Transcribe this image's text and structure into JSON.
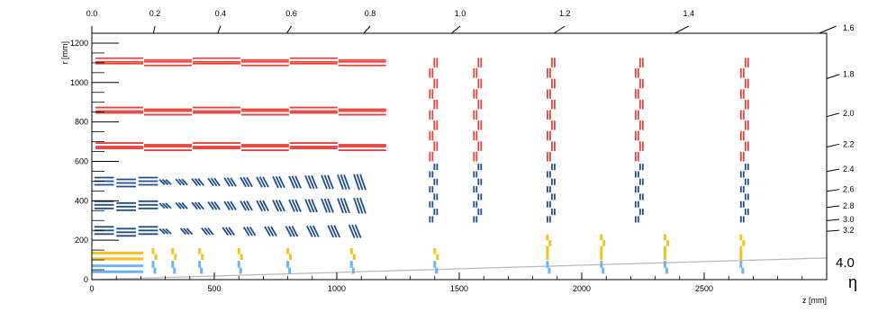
{
  "axes": {
    "x_unit_label": "z [mm]",
    "y_unit_label": "r [mm]",
    "x_ticks": [
      "0",
      "500",
      "1000",
      "1500",
      "2000",
      "2500"
    ],
    "y_ticks": [
      "0",
      "200",
      "400",
      "600",
      "800",
      "1000",
      "1200"
    ],
    "eta_symbol": "η",
    "eta_top_ticks": [
      "0.0",
      "0.2",
      "0.4",
      "0.6",
      "0.8",
      "1.0",
      "1.2",
      "1.4"
    ],
    "eta_right_ticks": [
      "1.6",
      "1.8",
      "2.0",
      "2.2",
      "2.4",
      "2.6",
      "2.8",
      "3.0",
      "3.2"
    ],
    "eta_limit_label": "4.0"
  },
  "colors": {
    "strip_outer": "#e8403a",
    "strip_inner": "#1f4e8c",
    "pixel_outer": "#f2c318",
    "pixel_inner": "#6cb4f0",
    "eta_line": "#b8b8b8",
    "frame": "#000000"
  },
  "chart_data": {
    "type": "diagram",
    "x_range_mm": [
      0,
      3000
    ],
    "y_range_mm": [
      0,
      1250
    ],
    "eta_lines": [
      0.0,
      0.2,
      0.4,
      0.6,
      0.8,
      1.0,
      1.2,
      1.4,
      1.6,
      1.8,
      2.0,
      2.2,
      2.4,
      2.6,
      2.8,
      3.0,
      3.2,
      4.0
    ],
    "barrel_strip_outer_layers_r_mm": [
      675,
      855,
      1105
    ],
    "barrel_strip_inner_layers_r_mm": [
      245,
      375,
      495
    ],
    "barrel_pixel_outer_layers_r_mm": [
      105,
      135
    ],
    "barrel_pixel_inner_layers_r_mm": [
      40,
      70
    ],
    "barrel_strip_length_mm": 1190,
    "endcap_strip_outer_z_mm": [
      1380,
      1560,
      1860,
      2220,
      2650
    ],
    "endcap_strip_inner_z_mm": [
      1380,
      1560,
      1860,
      2220,
      2650
    ],
    "endcap_pixel_disks_z_mm": [
      250,
      330,
      440,
      600,
      800,
      1060,
      1400,
      1860,
      2080,
      2340,
      2650
    ]
  }
}
